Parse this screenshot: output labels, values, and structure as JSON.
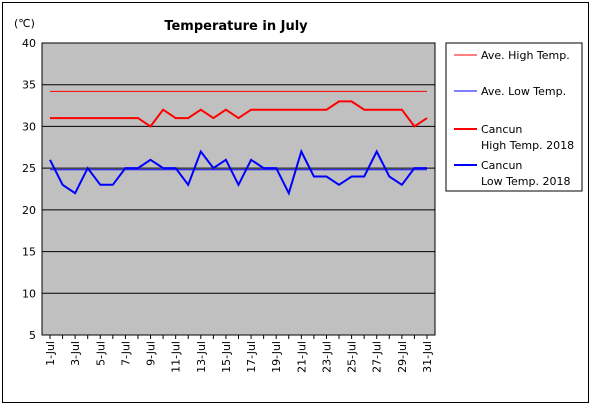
{
  "chart_data": {
    "type": "line",
    "title": "Temperature in July",
    "unit_label": "(℃)",
    "ylim": [
      5,
      40
    ],
    "y_ticks": [
      5,
      10,
      15,
      20,
      25,
      30,
      35,
      40
    ],
    "x": [
      "1-Jul",
      "2-Jul",
      "3-Jul",
      "4-Jul",
      "5-Jul",
      "6-Jul",
      "7-Jul",
      "8-Jul",
      "9-Jul",
      "10-Jul",
      "11-Jul",
      "12-Jul",
      "13-Jul",
      "14-Jul",
      "15-Jul",
      "16-Jul",
      "17-Jul",
      "18-Jul",
      "19-Jul",
      "20-Jul",
      "21-Jul",
      "22-Jul",
      "23-Jul",
      "24-Jul",
      "25-Jul",
      "26-Jul",
      "27-Jul",
      "28-Jul",
      "29-Jul",
      "30-Jul",
      "31-Jul"
    ],
    "x_tick_labels": [
      "1-Jul",
      "3-Jul",
      "5-Jul",
      "7-Jul",
      "9-Jul",
      "11-Jul",
      "13-Jul",
      "15-Jul",
      "17-Jul",
      "19-Jul",
      "21-Jul",
      "23-Jul",
      "25-Jul",
      "27-Jul",
      "29-Jul",
      "31-Jul"
    ],
    "grid": true,
    "legend_position": "right",
    "series": [
      {
        "name": "Ave. High Temp.",
        "color": "#ff0000",
        "width": 1,
        "values": [
          34.2,
          34.2,
          34.2,
          34.2,
          34.2,
          34.2,
          34.2,
          34.2,
          34.2,
          34.2,
          34.2,
          34.2,
          34.2,
          34.2,
          34.2,
          34.2,
          34.2,
          34.2,
          34.2,
          34.2,
          34.2,
          34.2,
          34.2,
          34.2,
          34.2,
          34.2,
          34.2,
          34.2,
          34.2,
          34.2,
          34.2
        ]
      },
      {
        "name": "Ave. Low Temp.",
        "color": "#0000ff",
        "width": 1,
        "values": [
          24.8,
          24.8,
          24.8,
          24.8,
          24.8,
          24.8,
          24.8,
          24.8,
          24.8,
          24.8,
          24.8,
          24.8,
          24.8,
          24.8,
          24.8,
          24.8,
          24.8,
          24.8,
          24.8,
          24.8,
          24.8,
          24.8,
          24.8,
          24.8,
          24.8,
          24.8,
          24.8,
          24.8,
          24.8,
          24.8,
          24.8
        ]
      },
      {
        "name": "Cancun High Temp. 2018",
        "name_lines": [
          "Cancun",
          "High Temp. 2018"
        ],
        "color": "#ff0000",
        "width": 2,
        "values": [
          31,
          31,
          31,
          31,
          31,
          31,
          31,
          31,
          30,
          32,
          31,
          31,
          32,
          31,
          32,
          31,
          32,
          32,
          32,
          32,
          32,
          32,
          32,
          33,
          33,
          32,
          32,
          32,
          32,
          30,
          31
        ]
      },
      {
        "name": "Cancun Low Temp. 2018",
        "name_lines": [
          "Cancun",
          "Low Temp. 2018"
        ],
        "color": "#0000ff",
        "width": 2,
        "values": [
          26,
          23,
          22,
          25,
          23,
          23,
          25,
          25,
          26,
          25,
          25,
          23,
          27,
          25,
          26,
          23,
          26,
          25,
          25,
          22,
          27,
          24,
          24,
          23,
          24,
          24,
          27,
          24,
          23,
          25,
          25
        ]
      }
    ]
  }
}
